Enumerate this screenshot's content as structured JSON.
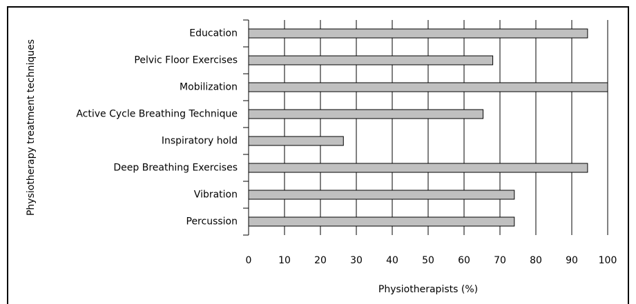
{
  "chart_data": {
    "type": "bar",
    "orientation": "horizontal",
    "xlabel": "Physiotherapists (%)",
    "ylabel": "Physiotherapy treatment techniques",
    "categories": [
      "Education",
      "Pelvic Floor Exercises",
      "Mobilization",
      "Active Cycle Breathing Technique",
      "Inspiratory hold",
      "Deep Breathing Exercises",
      "Vibration",
      "Percussion"
    ],
    "values": [
      94.4,
      68,
      100,
      65.3,
      26.4,
      94.4,
      74,
      74
    ],
    "color": "#c0c0c0",
    "xlim": [
      0,
      100
    ],
    "xticks": [
      0,
      10,
      20,
      30,
      40,
      50,
      60,
      70,
      80,
      90,
      100
    ],
    "grid": true
  }
}
